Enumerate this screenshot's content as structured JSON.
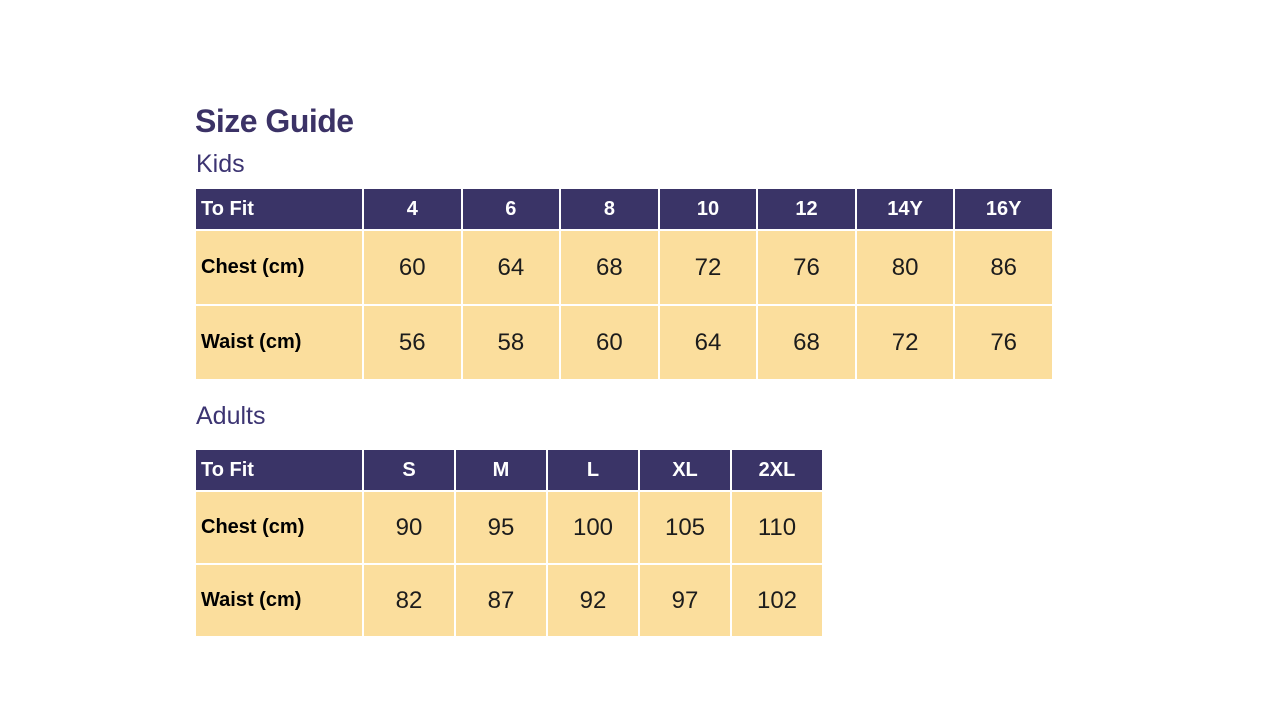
{
  "page": {
    "title": "Size Guide"
  },
  "colors": {
    "page_bg": "#FFFFFF",
    "header_bg": "#3A3467",
    "header_text": "#FFFFFF",
    "body_bg": "#FBDE9D",
    "body_text": "#1C1C1C",
    "title_text": "#3B3266",
    "section_text": "#3C3472"
  },
  "tables": [
    {
      "section_label": "Kids",
      "header": [
        "To Fit",
        "4",
        "6",
        "8",
        "10",
        "12",
        "14Y",
        "16Y"
      ],
      "rows": [
        {
          "label": "Chest (cm)",
          "values": [
            "60",
            "64",
            "68",
            "72",
            "76",
            "80",
            "86"
          ]
        },
        {
          "label": "Waist (cm)",
          "values": [
            "56",
            "58",
            "60",
            "64",
            "68",
            "72",
            "76"
          ]
        }
      ]
    },
    {
      "section_label": "Adults",
      "header": [
        "To Fit",
        "S",
        "M",
        "L",
        "XL",
        "2XL"
      ],
      "rows": [
        {
          "label": "Chest (cm)",
          "values": [
            "90",
            "95",
            "100",
            "105",
            "110"
          ]
        },
        {
          "label": "Waist (cm)",
          "values": [
            "82",
            "87",
            "92",
            "97",
            "102"
          ]
        }
      ]
    }
  ]
}
